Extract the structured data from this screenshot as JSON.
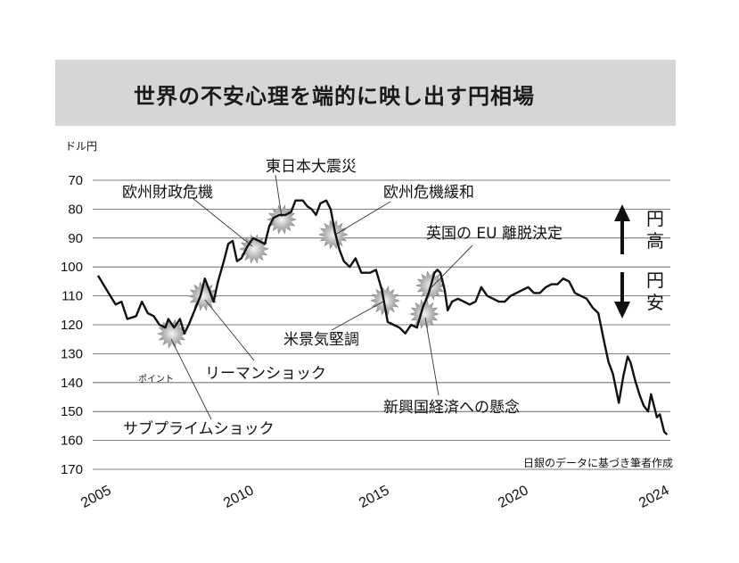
{
  "title": "世界の不安心理を端的に映し出す円相場",
  "chart_data": {
    "type": "line",
    "ylabel": "ドル円",
    "source": "日銀のデータに基づき筆者作成",
    "y_ticks": [
      "70",
      "80",
      "90",
      "100",
      "110",
      "120",
      "130",
      "140",
      "150",
      "160",
      "170"
    ],
    "x_ticks": [
      "2005",
      "2010",
      "2015",
      "2020",
      "2024"
    ],
    "ylim": [
      70,
      170
    ],
    "y_inverted": true,
    "grid": "horizontal",
    "series": [
      {
        "values": [
          [
            2005.0,
            103
          ],
          [
            2005.3,
            108
          ],
          [
            2005.6,
            113
          ],
          [
            2005.8,
            112
          ],
          [
            2006.0,
            118
          ],
          [
            2006.3,
            117
          ],
          [
            2006.5,
            112
          ],
          [
            2006.7,
            116
          ],
          [
            2006.9,
            117
          ],
          [
            2007.1,
            120
          ],
          [
            2007.3,
            121
          ],
          [
            2007.4,
            118
          ],
          [
            2007.6,
            121
          ],
          [
            2007.8,
            118
          ],
          [
            2007.95,
            123
          ],
          [
            2008.1,
            120
          ],
          [
            2008.3,
            115
          ],
          [
            2008.5,
            110
          ],
          [
            2008.65,
            104
          ],
          [
            2008.8,
            108
          ],
          [
            2008.95,
            112
          ],
          [
            2009.1,
            105
          ],
          [
            2009.3,
            98
          ],
          [
            2009.45,
            92
          ],
          [
            2009.6,
            91
          ],
          [
            2009.75,
            98
          ],
          [
            2009.9,
            97
          ],
          [
            2010.1,
            93
          ],
          [
            2010.3,
            90
          ],
          [
            2010.5,
            91
          ],
          [
            2010.7,
            92
          ],
          [
            2010.85,
            86
          ],
          [
            2011.0,
            83
          ],
          [
            2011.2,
            82
          ],
          [
            2011.4,
            82
          ],
          [
            2011.6,
            81
          ],
          [
            2011.75,
            77
          ],
          [
            2011.9,
            77
          ],
          [
            2012.0,
            77
          ],
          [
            2012.15,
            79
          ],
          [
            2012.3,
            80
          ],
          [
            2012.45,
            82
          ],
          [
            2012.6,
            78
          ],
          [
            2012.8,
            77
          ],
          [
            2012.95,
            80
          ],
          [
            2013.1,
            88
          ],
          [
            2013.25,
            94
          ],
          [
            2013.4,
            98
          ],
          [
            2013.6,
            100
          ],
          [
            2013.8,
            97
          ],
          [
            2014.0,
            102
          ],
          [
            2014.3,
            102
          ],
          [
            2014.5,
            101
          ],
          [
            2014.7,
            108
          ],
          [
            2014.9,
            119
          ],
          [
            2015.1,
            120
          ],
          [
            2015.3,
            121
          ],
          [
            2015.5,
            123
          ],
          [
            2015.7,
            120
          ],
          [
            2015.9,
            121
          ],
          [
            2016.1,
            114
          ],
          [
            2016.3,
            109
          ],
          [
            2016.5,
            102
          ],
          [
            2016.6,
            101
          ],
          [
            2016.7,
            102
          ],
          [
            2016.85,
            108
          ],
          [
            2016.95,
            115
          ],
          [
            2017.1,
            112
          ],
          [
            2017.3,
            111
          ],
          [
            2017.5,
            112
          ],
          [
            2017.7,
            113
          ],
          [
            2017.9,
            112
          ],
          [
            2018.1,
            107
          ],
          [
            2018.3,
            110
          ],
          [
            2018.5,
            111
          ],
          [
            2018.7,
            112
          ],
          [
            2018.9,
            112
          ],
          [
            2019.1,
            110
          ],
          [
            2019.3,
            109
          ],
          [
            2019.5,
            108
          ],
          [
            2019.7,
            107
          ],
          [
            2019.9,
            109
          ],
          [
            2020.1,
            109
          ],
          [
            2020.3,
            107
          ],
          [
            2020.5,
            106
          ],
          [
            2020.7,
            106
          ],
          [
            2020.9,
            104
          ],
          [
            2021.1,
            105
          ],
          [
            2021.3,
            109
          ],
          [
            2021.5,
            110
          ],
          [
            2021.7,
            111
          ],
          [
            2021.9,
            114
          ],
          [
            2022.1,
            116
          ],
          [
            2022.3,
            126
          ],
          [
            2022.45,
            133
          ],
          [
            2022.6,
            137
          ],
          [
            2022.8,
            147
          ],
          [
            2022.95,
            138
          ],
          [
            2023.1,
            131
          ],
          [
            2023.2,
            133
          ],
          [
            2023.35,
            139
          ],
          [
            2023.5,
            144
          ],
          [
            2023.65,
            148
          ],
          [
            2023.8,
            150
          ],
          [
            2023.9,
            144
          ],
          [
            2024.0,
            148
          ],
          [
            2024.1,
            152
          ],
          [
            2024.2,
            151
          ],
          [
            2024.35,
            157
          ],
          [
            2024.45,
            158
          ]
        ]
      }
    ],
    "annotations": [
      "サブプライムショック",
      "ポイント",
      "リーマンショック",
      "欧州財政危機",
      "東日本大震災",
      "欧州危機緩和",
      "米景気堅調",
      "新興国経済への懸念",
      "英国の EU 離脱決定"
    ],
    "side_labels": {
      "yen_strong": "円高",
      "yen_weak": "円安"
    }
  }
}
